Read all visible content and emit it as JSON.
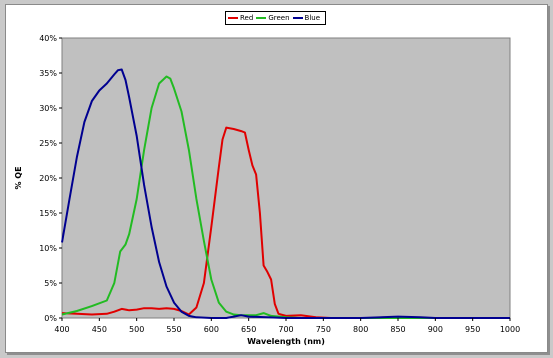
{
  "chart_data": {
    "type": "line",
    "title": "",
    "xlabel": "Wavelength (nm)",
    "ylabel": "% QE",
    "xlim": [
      400,
      1000
    ],
    "ylim": [
      0,
      40
    ],
    "x_ticks": [
      "400",
      "450",
      "500",
      "550",
      "600",
      "650",
      "700",
      "750",
      "800",
      "850",
      "900",
      "950",
      "1000"
    ],
    "y_ticks": [
      "0%",
      "5%",
      "10%",
      "15%",
      "20%",
      "25%",
      "30%",
      "35%",
      "40%"
    ],
    "grid": false,
    "legend_position": "top-center",
    "series": [
      {
        "name": "Red",
        "color": "#e00000",
        "points": [
          [
            400,
            0.7
          ],
          [
            420,
            0.6
          ],
          [
            440,
            0.5
          ],
          [
            460,
            0.6
          ],
          [
            470,
            0.9
          ],
          [
            480,
            1.3
          ],
          [
            490,
            1.1
          ],
          [
            500,
            1.2
          ],
          [
            510,
            1.4
          ],
          [
            520,
            1.4
          ],
          [
            530,
            1.3
          ],
          [
            540,
            1.4
          ],
          [
            550,
            1.3
          ],
          [
            560,
            1.0
          ],
          [
            570,
            0.5
          ],
          [
            580,
            1.5
          ],
          [
            590,
            5
          ],
          [
            600,
            13
          ],
          [
            610,
            21.5
          ],
          [
            615,
            25.5
          ],
          [
            620,
            27.2
          ],
          [
            630,
            27.0
          ],
          [
            640,
            26.7
          ],
          [
            645,
            26.5
          ],
          [
            650,
            24
          ],
          [
            655,
            21.8
          ],
          [
            660,
            20.5
          ],
          [
            665,
            15
          ],
          [
            670,
            7.5
          ],
          [
            675,
            6.6
          ],
          [
            680,
            5.5
          ],
          [
            685,
            2
          ],
          [
            690,
            0.6
          ],
          [
            700,
            0.3
          ],
          [
            720,
            0.4
          ],
          [
            740,
            0.1
          ],
          [
            760,
            0
          ],
          [
            1000,
            0
          ]
        ]
      },
      {
        "name": "Green",
        "color": "#22bb22",
        "points": [
          [
            400,
            0.5
          ],
          [
            420,
            1.0
          ],
          [
            440,
            1.7
          ],
          [
            460,
            2.5
          ],
          [
            470,
            5
          ],
          [
            478,
            9.5
          ],
          [
            485,
            10.5
          ],
          [
            490,
            12
          ],
          [
            500,
            17
          ],
          [
            510,
            24
          ],
          [
            520,
            30
          ],
          [
            530,
            33.5
          ],
          [
            540,
            34.5
          ],
          [
            545,
            34.2
          ],
          [
            550,
            32.8
          ],
          [
            560,
            29.5
          ],
          [
            570,
            24
          ],
          [
            580,
            17
          ],
          [
            590,
            11
          ],
          [
            600,
            5.5
          ],
          [
            610,
            2.2
          ],
          [
            620,
            0.9
          ],
          [
            630,
            0.5
          ],
          [
            640,
            0.4
          ],
          [
            650,
            0.4
          ],
          [
            660,
            0.4
          ],
          [
            670,
            0.7
          ],
          [
            680,
            0.3
          ],
          [
            700,
            0.1
          ],
          [
            720,
            0
          ],
          [
            1000,
            0
          ]
        ]
      },
      {
        "name": "Blue",
        "color": "#000090",
        "points": [
          [
            400,
            10.8
          ],
          [
            410,
            17
          ],
          [
            420,
            23
          ],
          [
            430,
            28
          ],
          [
            440,
            31
          ],
          [
            450,
            32.5
          ],
          [
            460,
            33.5
          ],
          [
            470,
            34.8
          ],
          [
            475,
            35.4
          ],
          [
            480,
            35.5
          ],
          [
            485,
            34
          ],
          [
            490,
            31.5
          ],
          [
            500,
            26
          ],
          [
            510,
            19
          ],
          [
            520,
            13
          ],
          [
            530,
            8
          ],
          [
            540,
            4.5
          ],
          [
            550,
            2.2
          ],
          [
            560,
            0.9
          ],
          [
            570,
            0.3
          ],
          [
            580,
            0.1
          ],
          [
            600,
            0
          ],
          [
            620,
            0
          ],
          [
            640,
            0.4
          ],
          [
            650,
            0.2
          ],
          [
            700,
            0
          ],
          [
            800,
            0
          ],
          [
            850,
            0.2
          ],
          [
            880,
            0.1
          ],
          [
            900,
            0
          ],
          [
            1000,
            0
          ]
        ]
      }
    ]
  }
}
